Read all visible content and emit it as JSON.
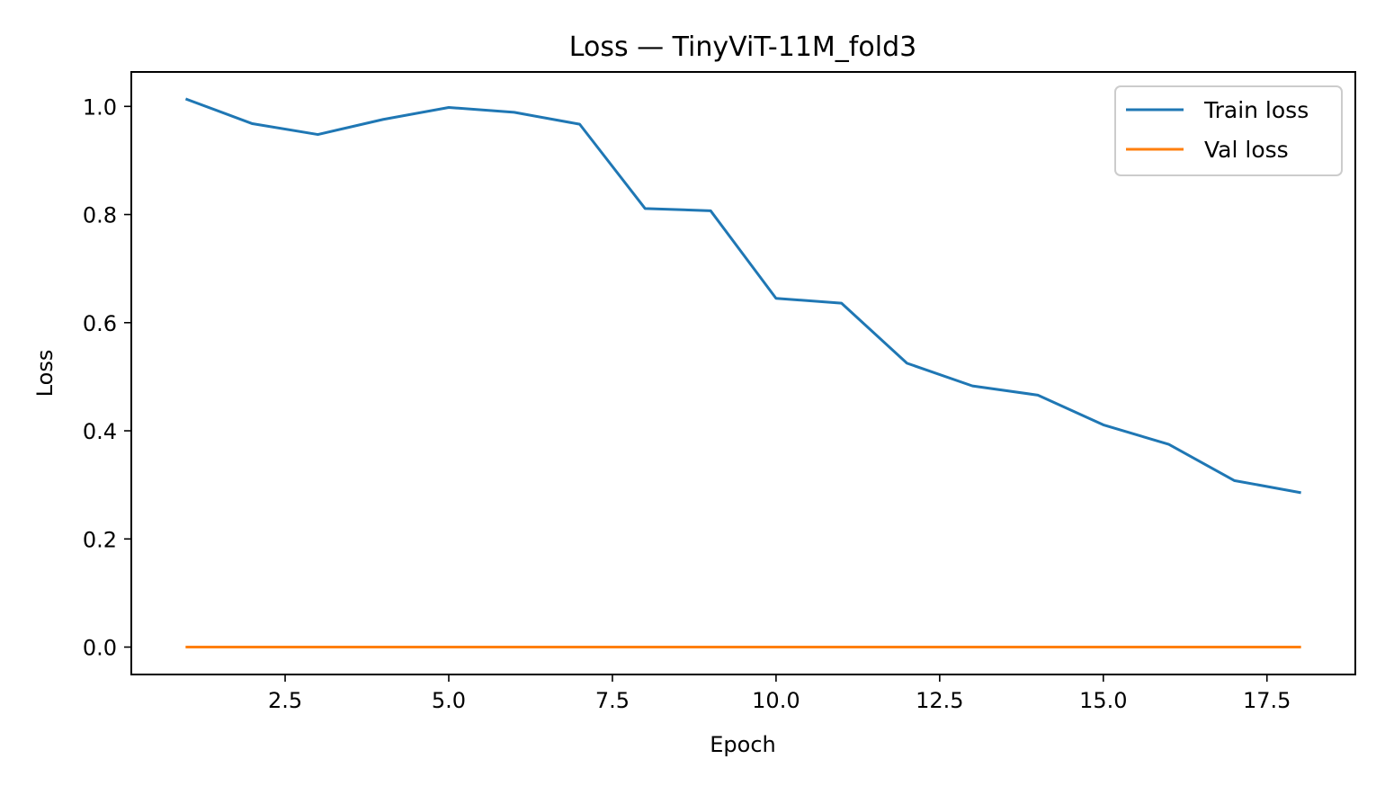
{
  "chart_data": {
    "type": "line",
    "title": "Loss — TinyViT-11M_fold3",
    "xlabel": "Epoch",
    "ylabel": "Loss",
    "x": [
      1,
      2,
      3,
      4,
      5,
      6,
      7,
      8,
      9,
      10,
      11,
      12,
      13,
      14,
      15,
      16,
      17,
      18
    ],
    "series": [
      {
        "name": "Train loss",
        "color": "#1f77b4",
        "values": [
          1.013,
          0.968,
          0.948,
          0.976,
          0.998,
          0.989,
          0.967,
          0.811,
          0.807,
          0.645,
          0.636,
          0.525,
          0.483,
          0.466,
          0.411,
          0.375,
          0.308,
          0.286
        ]
      },
      {
        "name": "Val loss",
        "color": "#ff7f0e",
        "values": [
          0,
          0,
          0,
          0,
          0,
          0,
          0,
          0,
          0,
          0,
          0,
          0,
          0,
          0,
          0,
          0,
          0,
          0
        ]
      }
    ],
    "xlim": [
      0.15,
      18.85
    ],
    "ylim": [
      -0.0507,
      1.0637
    ],
    "xticks": [
      2.5,
      5.0,
      7.5,
      10.0,
      12.5,
      15.0,
      17.5
    ],
    "xtick_labels": [
      "2.5",
      "5.0",
      "7.5",
      "10.0",
      "12.5",
      "15.0",
      "17.5"
    ],
    "yticks": [
      0.0,
      0.2,
      0.4,
      0.6,
      0.8,
      1.0
    ],
    "ytick_labels": [
      "0.0",
      "0.2",
      "0.4",
      "0.6",
      "0.8",
      "1.0"
    ],
    "grid": false,
    "legend_position": "top-right"
  }
}
